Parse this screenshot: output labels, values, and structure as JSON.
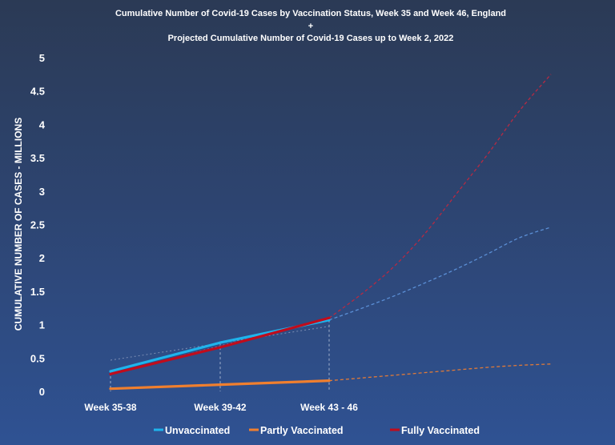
{
  "chart_data": {
    "type": "line",
    "title_lines": [
      "Cumulative Number of Covid-19 Cases by Vaccination Status, Week 35 and Week 46, England",
      "+",
      "Projected Cumulative Number of Covid-19 Cases up to Week 2, 2022"
    ],
    "ylabel": "CUMULATIVE NUMBER OF CASES - MILLIONS",
    "categories": [
      "Week 35-38",
      "Week 39-42",
      "Week 43 - 46"
    ],
    "y_ticks": [
      "0",
      "0.5",
      "1",
      "1.5",
      "2",
      "2.5",
      "3",
      "3.5",
      "4",
      "4.5",
      "5"
    ],
    "ylim": [
      0,
      5
    ],
    "grid": false,
    "legend_position": "bottom",
    "series": [
      {
        "name": "Unvaccinated",
        "color": "#1eb4ec",
        "values": [
          0.3,
          0.73,
          1.07
        ],
        "projection": [
          1.07,
          1.24,
          1.42,
          1.62,
          1.83,
          2.06,
          2.3,
          2.46
        ],
        "projection_color": "#5b8fd6"
      },
      {
        "name": "Partly Vaccinated",
        "color": "#f07f2e",
        "values": [
          0.04,
          0.1,
          0.16
        ],
        "projection": [
          0.16,
          0.2,
          0.24,
          0.28,
          0.32,
          0.36,
          0.39,
          0.41
        ],
        "projection_color": "#e07a38"
      },
      {
        "name": "Fully Vaccinated",
        "color": "#c00c1c",
        "values": [
          0.26,
          0.66,
          1.1
        ],
        "projection": [
          1.1,
          1.45,
          1.85,
          2.35,
          2.95,
          3.55,
          4.2,
          4.75
        ],
        "projection_color": "#b62a43"
      }
    ]
  }
}
